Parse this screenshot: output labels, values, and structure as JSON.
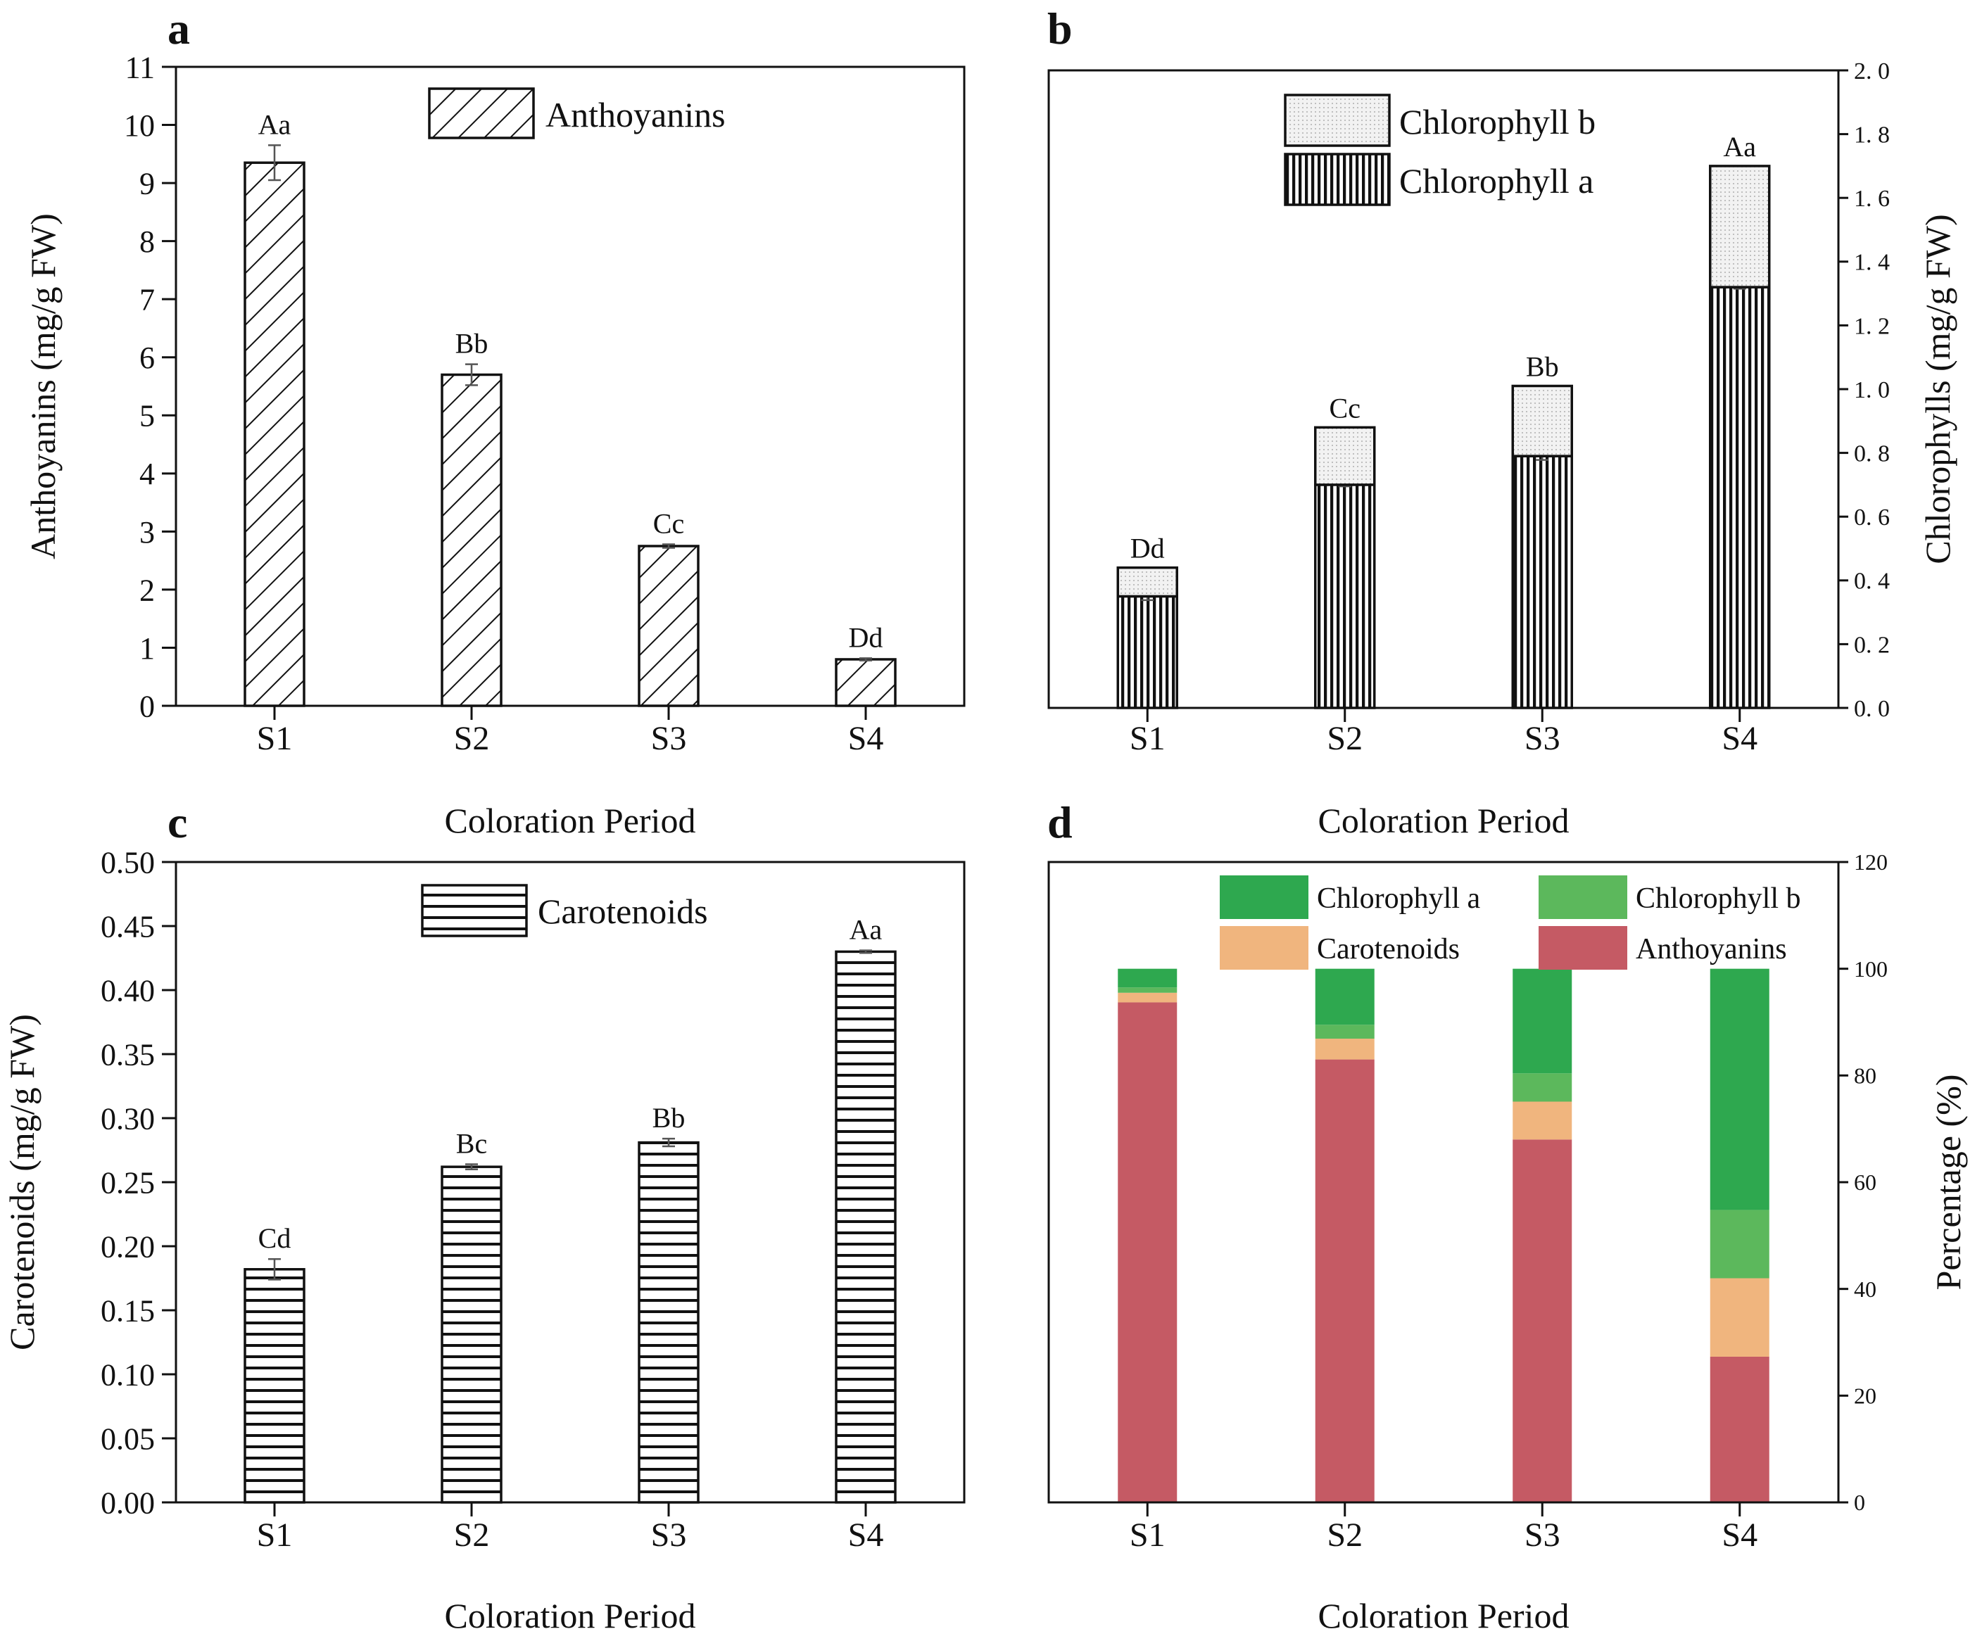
{
  "chart_data": [
    {
      "panel": "a",
      "type": "bar",
      "categories": [
        "S1",
        "S2",
        "S3",
        "S4"
      ],
      "series": [
        {
          "name": "Anthoyanins",
          "values": [
            9.35,
            5.7,
            2.75,
            0.8
          ],
          "errors": [
            0.3,
            0.18,
            0.03,
            0.02
          ]
        }
      ],
      "labels": [
        "Aa",
        "Bb",
        "Cc",
        "Dd"
      ],
      "ylabel": "Anthoyanins (mg/g FW)",
      "xlabel": "Coloration Period",
      "ylim": [
        0,
        11
      ],
      "yticks": [
        "0",
        "1",
        "2",
        "3",
        "4",
        "5",
        "6",
        "7",
        "8",
        "9",
        "10",
        "11"
      ],
      "legend": {
        "position": "top-center",
        "entries": [
          "Anthoyanins"
        ]
      }
    },
    {
      "panel": "b",
      "type": "bar",
      "stacked": true,
      "categories": [
        "S1",
        "S2",
        "S3",
        "S4"
      ],
      "series": [
        {
          "name": "Chlorophyll a",
          "values": [
            0.35,
            0.7,
            0.79,
            1.32
          ],
          "errors": [
            0.012,
            0.005,
            0.012,
            0.005
          ],
          "labels": [
            "Dd",
            "Cc",
            "Bb",
            "Aa"
          ]
        },
        {
          "name": "Chlorophyll b",
          "values": [
            0.09,
            0.18,
            0.22,
            0.38
          ],
          "labels": [
            "Dd",
            "Cc",
            "Bb",
            "Aa"
          ]
        }
      ],
      "ylabel": "Chlorophylls (mg/g FW)",
      "xlabel": "Coloration Period",
      "ylim": [
        0,
        2.0
      ],
      "yticks": [
        "0. 0",
        "0. 2",
        "0. 4",
        "0. 6",
        "0. 8",
        "1. 0",
        "1. 2",
        "1. 4",
        "1. 6",
        "1. 8",
        "2. 0"
      ],
      "legend": {
        "position": "top-center",
        "entries": [
          "Chlorophyll b",
          "Chlorophyll a"
        ]
      }
    },
    {
      "panel": "c",
      "type": "bar",
      "categories": [
        "S1",
        "S2",
        "S3",
        "S4"
      ],
      "series": [
        {
          "name": "Carotenoids",
          "values": [
            0.182,
            0.262,
            0.281,
            0.43
          ],
          "errors": [
            0.008,
            0.002,
            0.003,
            0.001
          ]
        }
      ],
      "labels": [
        "Cd",
        "Bc",
        "Bb",
        "Aa"
      ],
      "ylabel": "Carotenoids (mg/g FW)",
      "xlabel": "Coloration Period",
      "ylim": [
        0,
        0.5
      ],
      "yticks": [
        "0.00",
        "0.05",
        "0.10",
        "0.15",
        "0.20",
        "0.25",
        "0.30",
        "0.35",
        "0.40",
        "0.45",
        "0.50"
      ],
      "legend": {
        "position": "top-center",
        "entries": [
          "Carotenoids"
        ]
      }
    },
    {
      "panel": "d",
      "type": "bar",
      "stacked": true,
      "categories": [
        "S1",
        "S2",
        "S3",
        "S4"
      ],
      "series": [
        {
          "name": "Anthoyanins",
          "color": "#c55a64",
          "values": [
            93.7,
            83.0,
            68.0,
            27.3
          ]
        },
        {
          "name": "Carotenoids",
          "color": "#f0b57e",
          "values": [
            1.8,
            3.9,
            7.1,
            14.7
          ]
        },
        {
          "name": "Chlorophyll b",
          "color": "#5cb85c",
          "values": [
            1.0,
            2.6,
            5.3,
            12.8
          ]
        },
        {
          "name": "Chlorophyll a",
          "color": "#2ea84f",
          "values": [
            3.5,
            10.5,
            19.6,
            45.2
          ]
        }
      ],
      "ylabel": "Percentage (%)",
      "xlabel": "Coloration Period",
      "ylim": [
        0,
        120
      ],
      "yticks": [
        "0",
        "20",
        "40",
        "60",
        "80",
        "100",
        "120"
      ],
      "legend": {
        "position": "top",
        "entries": [
          "Chlorophyll a",
          "Chlorophyll b",
          "Carotenoids",
          "Anthoyanins"
        ]
      }
    }
  ]
}
